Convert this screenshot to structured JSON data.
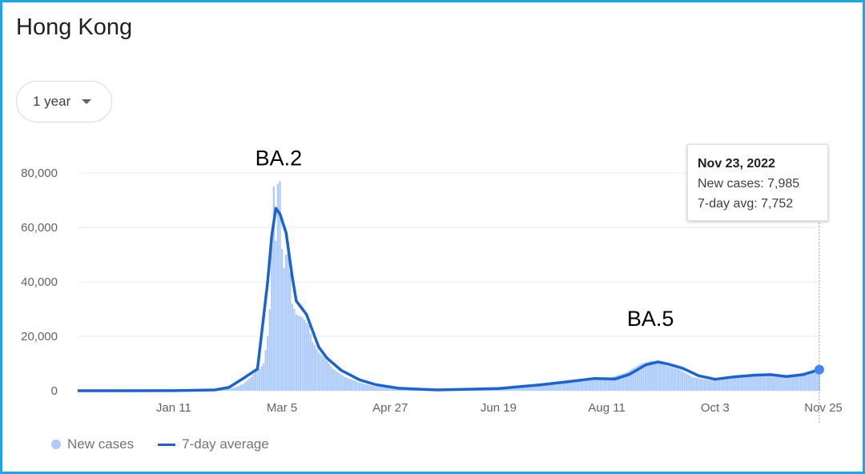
{
  "title": "Hong Kong",
  "range_selector": {
    "label": "1 year"
  },
  "tooltip": {
    "date": "Nov 23, 2022",
    "new_cases": "New cases: 7,985",
    "avg": "7-day avg: 7,752"
  },
  "legend": {
    "bars": "New cases",
    "line": "7-day average"
  },
  "colors": {
    "bars": "#aecbfa",
    "line": "#1a63d1",
    "frame": "#1ea7e8",
    "highlight": "#4285f4"
  },
  "chart_data": {
    "type": "bar",
    "title": "",
    "xlabel": "",
    "ylabel": "",
    "ylim": [
      0,
      80000
    ],
    "y_ticks": [
      "80,000",
      "60,000",
      "40,000",
      "20,000",
      "0"
    ],
    "y_tick_values": [
      80000,
      60000,
      40000,
      20000,
      0
    ],
    "x_tick_labels": [
      "Jan 11",
      "Mar 5",
      "Apr 27",
      "Jun 19",
      "Aug 11",
      "Oct 3",
      "Nov 25"
    ],
    "x_range": [
      "Nov 25, 2021",
      "Nov 25, 2022"
    ],
    "annotations": [
      {
        "text": "BA.2",
        "date": "Mar 1, 2022",
        "value": 84000
      },
      {
        "text": "BA.5",
        "date": "Aug 30, 2022",
        "value": 25000
      }
    ],
    "series": [
      {
        "name": "New cases",
        "type": "bar",
        "points": [
          [
            "2021-12-01",
            10
          ],
          [
            "2021-12-15",
            15
          ],
          [
            "2022-01-01",
            20
          ],
          [
            "2022-01-11",
            60
          ],
          [
            "2022-01-25",
            150
          ],
          [
            "2022-02-05",
            400
          ],
          [
            "2022-02-10",
            1200
          ],
          [
            "2022-02-14",
            2500
          ],
          [
            "2022-02-18",
            5000
          ],
          [
            "2022-02-20",
            7000
          ],
          [
            "2022-02-22",
            8000
          ],
          [
            "2022-02-24",
            10000
          ],
          [
            "2022-02-26",
            20000
          ],
          [
            "2022-02-27",
            30000
          ],
          [
            "2022-02-28",
            56000
          ],
          [
            "2022-03-01",
            75000
          ],
          [
            "2022-03-02",
            55000
          ],
          [
            "2022-03-03",
            76000
          ],
          [
            "2022-03-04",
            77000
          ],
          [
            "2022-03-05",
            52000
          ],
          [
            "2022-03-06",
            45000
          ],
          [
            "2022-03-08",
            55000
          ],
          [
            "2022-03-10",
            32000
          ],
          [
            "2022-03-12",
            28000
          ],
          [
            "2022-03-15",
            27000
          ],
          [
            "2022-03-18",
            24000
          ],
          [
            "2022-03-20",
            18000
          ],
          [
            "2022-03-23",
            14000
          ],
          [
            "2022-03-26",
            12000
          ],
          [
            "2022-03-30",
            8000
          ],
          [
            "2022-04-05",
            5000
          ],
          [
            "2022-04-12",
            3000
          ],
          [
            "2022-04-20",
            1500
          ],
          [
            "2022-05-01",
            500
          ],
          [
            "2022-05-15",
            300
          ],
          [
            "2022-06-01",
            400
          ],
          [
            "2022-06-15",
            800
          ],
          [
            "2022-07-01",
            1800
          ],
          [
            "2022-07-15",
            3000
          ],
          [
            "2022-08-01",
            4200
          ],
          [
            "2022-08-11",
            4500
          ],
          [
            "2022-08-20",
            6500
          ],
          [
            "2022-08-28",
            10000
          ],
          [
            "2022-09-02",
            11000
          ],
          [
            "2022-09-08",
            9500
          ],
          [
            "2022-09-15",
            8000
          ],
          [
            "2022-09-22",
            5000
          ],
          [
            "2022-10-01",
            3800
          ],
          [
            "2022-10-08",
            4500
          ],
          [
            "2022-10-15",
            5200
          ],
          [
            "2022-10-25",
            5800
          ],
          [
            "2022-11-03",
            5000
          ],
          [
            "2022-11-10",
            5500
          ],
          [
            "2022-11-17",
            6800
          ],
          [
            "2022-11-23",
            7985
          ]
        ]
      },
      {
        "name": "7-day average",
        "type": "line",
        "points": [
          [
            "2021-11-25",
            0
          ],
          [
            "2021-12-15",
            10
          ],
          [
            "2022-01-11",
            40
          ],
          [
            "2022-01-31",
            300
          ],
          [
            "2022-02-07",
            1200
          ],
          [
            "2022-02-14",
            4500
          ],
          [
            "2022-02-21",
            8000
          ],
          [
            "2022-02-26",
            40000
          ],
          [
            "2022-02-28",
            57000
          ],
          [
            "2022-03-02",
            67000
          ],
          [
            "2022-03-04",
            65000
          ],
          [
            "2022-03-07",
            58000
          ],
          [
            "2022-03-10",
            42000
          ],
          [
            "2022-03-12",
            33000
          ],
          [
            "2022-03-14",
            31000
          ],
          [
            "2022-03-17",
            28000
          ],
          [
            "2022-03-20",
            22000
          ],
          [
            "2022-03-23",
            16000
          ],
          [
            "2022-03-27",
            12000
          ],
          [
            "2022-04-03",
            7500
          ],
          [
            "2022-04-12",
            4000
          ],
          [
            "2022-04-20",
            2200
          ],
          [
            "2022-05-01",
            900
          ],
          [
            "2022-05-20",
            300
          ],
          [
            "2022-06-19",
            800
          ],
          [
            "2022-07-10",
            2200
          ],
          [
            "2022-07-25",
            3500
          ],
          [
            "2022-08-05",
            4500
          ],
          [
            "2022-08-15",
            4300
          ],
          [
            "2022-08-22",
            6000
          ],
          [
            "2022-08-30",
            9500
          ],
          [
            "2022-09-05",
            10600
          ],
          [
            "2022-09-10",
            9800
          ],
          [
            "2022-09-17",
            8300
          ],
          [
            "2022-09-25",
            5500
          ],
          [
            "2022-10-03",
            4200
          ],
          [
            "2022-10-12",
            5100
          ],
          [
            "2022-10-22",
            5700
          ],
          [
            "2022-10-30",
            5900
          ],
          [
            "2022-11-07",
            5200
          ],
          [
            "2022-11-15",
            5900
          ],
          [
            "2022-11-23",
            7752
          ]
        ]
      }
    ],
    "highlight": {
      "date": "2022-11-23",
      "value": 7752
    }
  }
}
